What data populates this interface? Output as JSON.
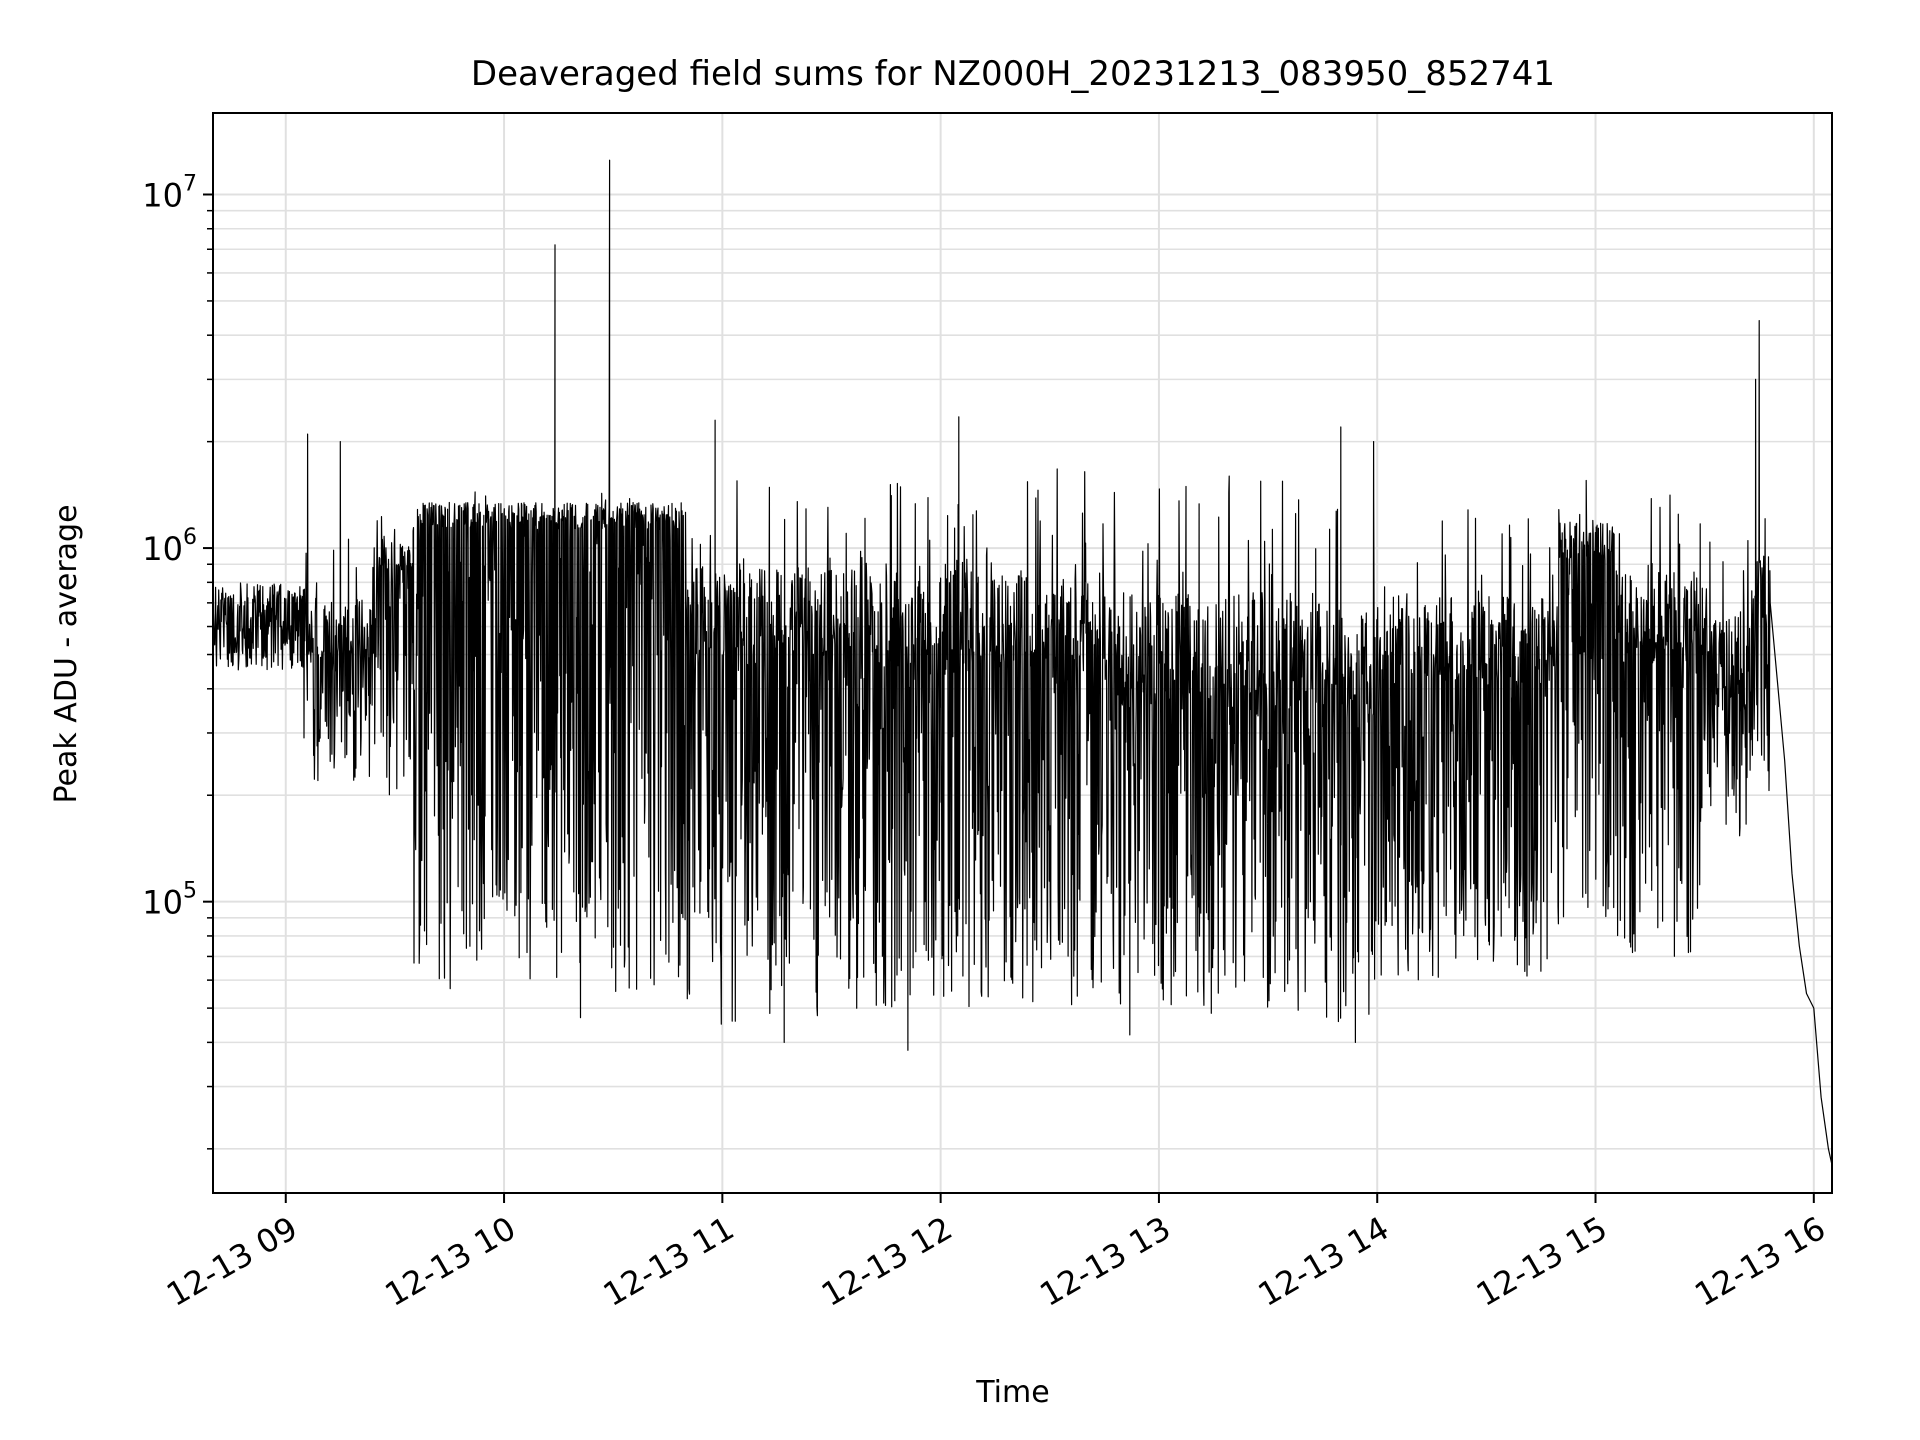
{
  "chart_data": {
    "type": "line",
    "title": "Deaveraged field sums for NZ000H_20231213_083950_852741",
    "xlabel": "Time",
    "ylabel": "Peak ADU - average",
    "yscale": "log",
    "grid": true,
    "grid_minor": true,
    "legend": "none",
    "line_color": "#000000",
    "grid_color": "#e0e0e0",
    "xlim": [
      "2023-12-13 08:40",
      "2023-12-13 16:05"
    ],
    "ylim": [
      15000,
      17000000
    ],
    "xticks": [
      {
        "value": "2023-12-13 09:00",
        "label": "12-13 09"
      },
      {
        "value": "2023-12-13 10:00",
        "label": "12-13 10"
      },
      {
        "value": "2023-12-13 11:00",
        "label": "12-13 11"
      },
      {
        "value": "2023-12-13 12:00",
        "label": "12-13 12"
      },
      {
        "value": "2023-12-13 13:00",
        "label": "12-13 13"
      },
      {
        "value": "2023-12-13 14:00",
        "label": "12-13 14"
      },
      {
        "value": "2023-12-13 15:00",
        "label": "12-13 15"
      },
      {
        "value": "2023-12-13 16:00",
        "label": "12-13 16"
      }
    ],
    "yticks": [
      {
        "value": 100000,
        "base": "10",
        "exp": "5"
      },
      {
        "value": 1000000,
        "base": "10",
        "exp": "6"
      },
      {
        "value": 10000000,
        "base": "10",
        "exp": "7"
      }
    ],
    "segments": [
      {
        "start": "2023-12-13 08:40",
        "end": "2023-12-13 09:05",
        "level": 600000,
        "low": 450000,
        "high": 850000
      },
      {
        "start": "2023-12-13 09:05",
        "end": "2023-12-13 09:25",
        "level": 550000,
        "low": 220000,
        "high": 1100000
      },
      {
        "start": "2023-12-13 09:25",
        "end": "2023-12-13 09:35",
        "level": 900000,
        "low": 200000,
        "high": 1300000
      },
      {
        "start": "2023-12-13 09:35",
        "end": "2023-12-13 10:50",
        "level": 1200000,
        "low": 55000,
        "high": 1600000
      },
      {
        "start": "2023-12-13 10:50",
        "end": "2023-12-13 11:45",
        "level": 600000,
        "low": 45000,
        "high": 1600000
      },
      {
        "start": "2023-12-13 11:45",
        "end": "2023-12-13 12:45",
        "level": 550000,
        "low": 50000,
        "high": 1700000
      },
      {
        "start": "2023-12-13 12:45",
        "end": "2023-12-13 13:45",
        "level": 450000,
        "low": 48000,
        "high": 1600000
      },
      {
        "start": "2023-12-13 13:45",
        "end": "2023-12-13 14:00",
        "level": 400000,
        "low": 45000,
        "high": 1500000
      },
      {
        "start": "2023-12-13 14:00",
        "end": "2023-12-13 14:50",
        "level": 500000,
        "low": 60000,
        "high": 1300000
      },
      {
        "start": "2023-12-13 14:50",
        "end": "2023-12-13 15:05",
        "level": 1000000,
        "low": 90000,
        "high": 1600000
      },
      {
        "start": "2023-12-13 15:05",
        "end": "2023-12-13 15:30",
        "level": 600000,
        "low": 70000,
        "high": 1500000
      },
      {
        "start": "2023-12-13 15:30",
        "end": "2023-12-13 15:43",
        "level": 450000,
        "low": 150000,
        "high": 1100000
      },
      {
        "start": "2023-12-13 15:43",
        "end": "2023-12-13 15:48",
        "level": 700000,
        "low": 200000,
        "high": 1500000
      }
    ],
    "tail": [
      {
        "x": "2023-12-13 15:48",
        "y": 700000
      },
      {
        "x": "2023-12-13 15:50",
        "y": 420000
      },
      {
        "x": "2023-12-13 15:52",
        "y": 250000
      },
      {
        "x": "2023-12-13 15:54",
        "y": 120000
      },
      {
        "x": "2023-12-13 15:56",
        "y": 75000
      },
      {
        "x": "2023-12-13 15:58",
        "y": 55000
      },
      {
        "x": "2023-12-13 16:00",
        "y": 50000
      },
      {
        "x": "2023-12-13 16:02",
        "y": 28000
      },
      {
        "x": "2023-12-13 16:04",
        "y": 20000
      },
      {
        "x": "2023-12-13 16:05",
        "y": 18000
      }
    ],
    "spikes": [
      {
        "x": "2023-12-13 10:14",
        "y": 7200000
      },
      {
        "x": "2023-12-13 10:29",
        "y": 12500000
      },
      {
        "x": "2023-12-13 09:06",
        "y": 2100000
      },
      {
        "x": "2023-12-13 09:15",
        "y": 2000000
      },
      {
        "x": "2023-12-13 10:58",
        "y": 2300000
      },
      {
        "x": "2023-12-13 12:05",
        "y": 2350000
      },
      {
        "x": "2023-12-13 13:50",
        "y": 2200000
      },
      {
        "x": "2023-12-13 13:59",
        "y": 2000000
      },
      {
        "x": "2023-12-13 15:44",
        "y": 3000000
      },
      {
        "x": "2023-12-13 15:45",
        "y": 4400000
      }
    ],
    "dips": [
      {
        "x": "2023-12-13 11:51",
        "y": 38000
      },
      {
        "x": "2023-12-13 11:17",
        "y": 40000
      },
      {
        "x": "2023-12-13 13:54",
        "y": 40000
      },
      {
        "x": "2023-12-13 12:52",
        "y": 42000
      },
      {
        "x": "2023-12-13 10:21",
        "y": 47000
      }
    ]
  }
}
